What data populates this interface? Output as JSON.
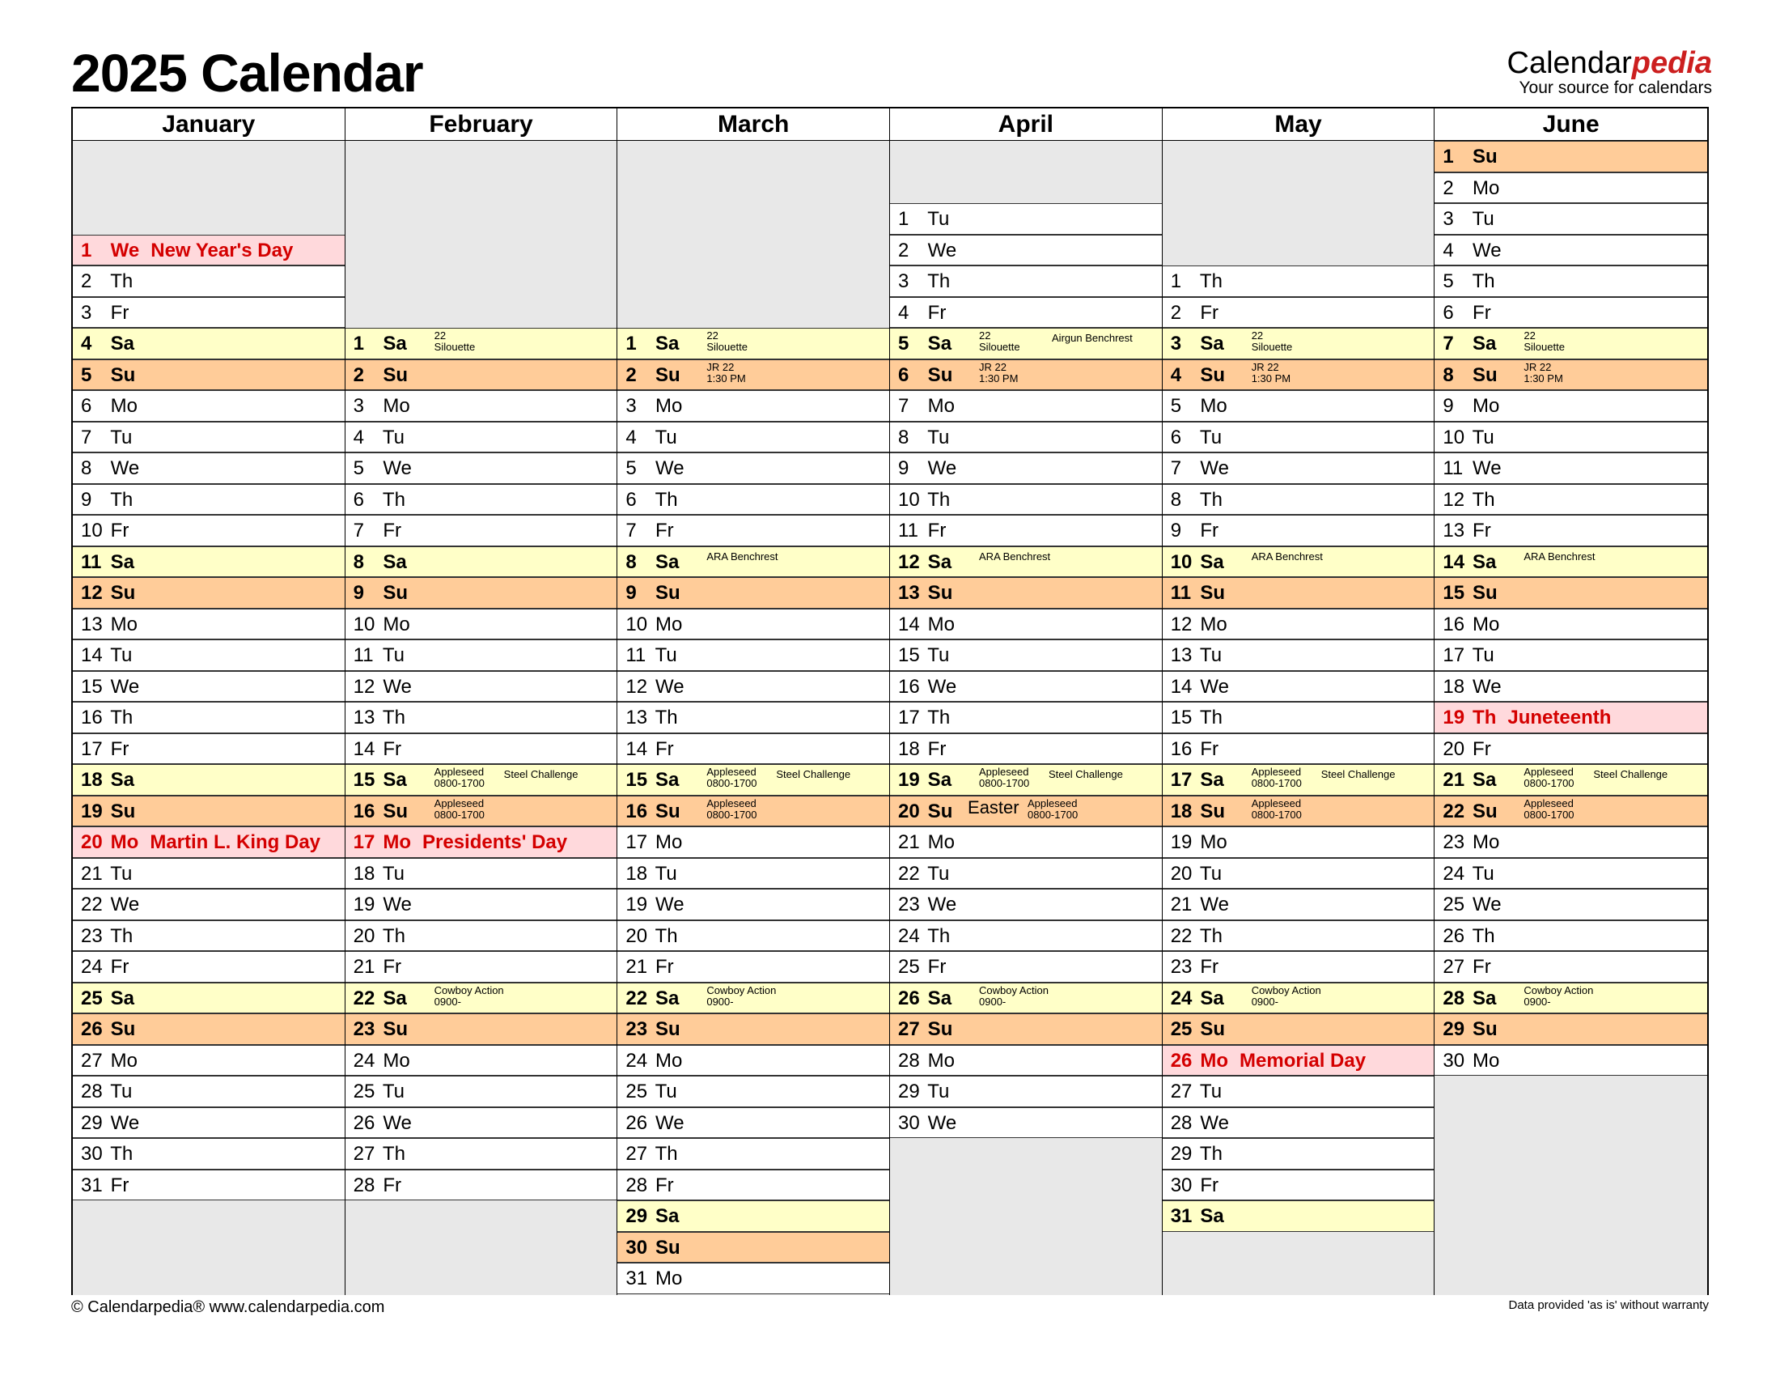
{
  "title": "2025 Calendar",
  "brand": {
    "main_prefix": "Calendar",
    "main_accent": "pedia",
    "tagline": "Your source for calendars"
  },
  "footer": {
    "left": "© Calendarpedia®   www.calendarpedia.com",
    "right": "Data provided 'as is' without warranty"
  },
  "colors": {
    "saturday": "#ffffc8",
    "sunday": "#ffcc99",
    "holiday_bg": "#ffd9dc",
    "holiday_text": "#d40000",
    "empty": "#e8e8e8"
  },
  "months": [
    {
      "name": "January",
      "offset": 3,
      "days": [
        "1 We",
        "2 Th",
        "3 Fr",
        "4 Sa",
        "5 Su",
        "6 Mo",
        "7 Tu",
        "8 We",
        "9 Th",
        "10 Fr",
        "11 Sa",
        "12 Su",
        "13 Mo",
        "14 Tu",
        "15 We",
        "16 Th",
        "17 Fr",
        "18 Sa",
        "19 Su",
        "20 Mo",
        "21 Tu",
        "22 We",
        "23 Th",
        "24 Fr",
        "25 Sa",
        "26 Su",
        "27 Mo",
        "28 Tu",
        "29 We",
        "30 Th",
        "31 Fr"
      ],
      "holidays": {
        "1": "New Year's Day",
        "20": "Martin L. King Day"
      },
      "events": {}
    },
    {
      "name": "February",
      "offset": 6,
      "days": [
        "1 Sa",
        "2 Su",
        "3 Mo",
        "4 Tu",
        "5 We",
        "6 Th",
        "7 Fr",
        "8 Sa",
        "9 Su",
        "10 Mo",
        "11 Tu",
        "12 We",
        "13 Th",
        "14 Fr",
        "15 Sa",
        "16 Su",
        "17 Mo",
        "18 Tu",
        "19 We",
        "20 Th",
        "21 Fr",
        "22 Sa",
        "23 Su",
        "24 Mo",
        "25 Tu",
        "26 We",
        "27 Th",
        "28 Fr"
      ],
      "holidays": {
        "17": "Presidents' Day"
      },
      "events": {
        "1": [
          "22\nSilouette"
        ],
        "15": [
          "Appleseed\n0800-1700",
          "Steel Challenge"
        ],
        "16": [
          "Appleseed\n0800-1700"
        ],
        "22": [
          "Cowboy Action\n0900-"
        ]
      }
    },
    {
      "name": "March",
      "offset": 6,
      "days": [
        "1 Sa",
        "2 Su",
        "3 Mo",
        "4 Tu",
        "5 We",
        "6 Th",
        "7 Fr",
        "8 Sa",
        "9 Su",
        "10 Mo",
        "11 Tu",
        "12 We",
        "13 Th",
        "14 Fr",
        "15 Sa",
        "16 Su",
        "17 Mo",
        "18 Tu",
        "19 We",
        "20 Th",
        "21 Fr",
        "22 Sa",
        "23 Su",
        "24 Mo",
        "25 Tu",
        "26 We",
        "27 Th",
        "28 Fr",
        "29 Sa",
        "30 Su",
        "31 Mo"
      ],
      "holidays": {},
      "events": {
        "1": [
          "22\nSilouette"
        ],
        "2": [
          "JR 22\n1:30 PM"
        ],
        "8": [
          "ARA Benchrest"
        ],
        "15": [
          "Appleseed\n0800-1700",
          "Steel Challenge"
        ],
        "16": [
          "Appleseed\n0800-1700"
        ],
        "22": [
          "Cowboy Action\n0900-"
        ]
      }
    },
    {
      "name": "April",
      "offset": 2,
      "days": [
        "1 Tu",
        "2 We",
        "3 Th",
        "4 Fr",
        "5 Sa",
        "6 Su",
        "7 Mo",
        "8 Tu",
        "9 We",
        "10 Th",
        "11 Fr",
        "12 Sa",
        "13 Su",
        "14 Mo",
        "15 Tu",
        "16 We",
        "17 Th",
        "18 Fr",
        "19 Sa",
        "20 Su",
        "21 Mo",
        "22 Tu",
        "23 We",
        "24 Th",
        "25 Fr",
        "26 Sa",
        "27 Su",
        "28 Mo",
        "29 Tu",
        "30 We"
      ],
      "holidays": {},
      "events": {
        "5": [
          "22\nSilouette",
          "Airgun Benchrest"
        ],
        "6": [
          "JR 22\n1:30 PM"
        ],
        "12": [
          "ARA Benchrest"
        ],
        "19": [
          "Appleseed\n0800-1700",
          "Steel Challenge"
        ],
        "20": [
          "Easter",
          "Appleseed\n0800-1700"
        ],
        "26": [
          "Cowboy Action\n0900-"
        ]
      }
    },
    {
      "name": "May",
      "offset": 4,
      "days": [
        "1 Th",
        "2 Fr",
        "3 Sa",
        "4 Su",
        "5 Mo",
        "6 Tu",
        "7 We",
        "8 Th",
        "9 Fr",
        "10 Sa",
        "11 Su",
        "12 Mo",
        "13 Tu",
        "14 We",
        "15 Th",
        "16 Fr",
        "17 Sa",
        "18 Su",
        "19 Mo",
        "20 Tu",
        "21 We",
        "22 Th",
        "23 Fr",
        "24 Sa",
        "25 Su",
        "26 Mo",
        "27 Tu",
        "28 We",
        "29 Th",
        "30 Fr",
        "31 Sa"
      ],
      "holidays": {
        "26": "Memorial Day"
      },
      "events": {
        "3": [
          "22\nSilouette"
        ],
        "4": [
          "JR 22\n1:30 PM"
        ],
        "10": [
          "ARA Benchrest"
        ],
        "17": [
          "Appleseed\n0800-1700",
          "Steel Challenge"
        ],
        "18": [
          "Appleseed\n0800-1700"
        ],
        "24": [
          "Cowboy Action\n0900-"
        ]
      }
    },
    {
      "name": "June",
      "offset": 0,
      "days": [
        "1 Su",
        "2 Mo",
        "3 Tu",
        "4 We",
        "5 Th",
        "6 Fr",
        "7 Sa",
        "8 Su",
        "9 Mo",
        "10 Tu",
        "11 We",
        "12 Th",
        "13 Fr",
        "14 Sa",
        "15 Su",
        "16 Mo",
        "17 Tu",
        "18 We",
        "19 Th",
        "20 Fr",
        "21 Sa",
        "22 Su",
        "23 Mo",
        "24 Tu",
        "25 We",
        "26 Th",
        "27 Fr",
        "28 Sa",
        "29 Su",
        "30 Mo"
      ],
      "holidays": {
        "19": "Juneteenth"
      },
      "events": {
        "7": [
          "22\nSilouette"
        ],
        "8": [
          "JR 22\n1:30 PM"
        ],
        "14": [
          "ARA Benchrest"
        ],
        "21": [
          "Appleseed\n0800-1700",
          "Steel Challenge"
        ],
        "22": [
          "Appleseed\n0800-1700"
        ],
        "28": [
          "Cowboy Action\n0900-"
        ]
      }
    }
  ]
}
